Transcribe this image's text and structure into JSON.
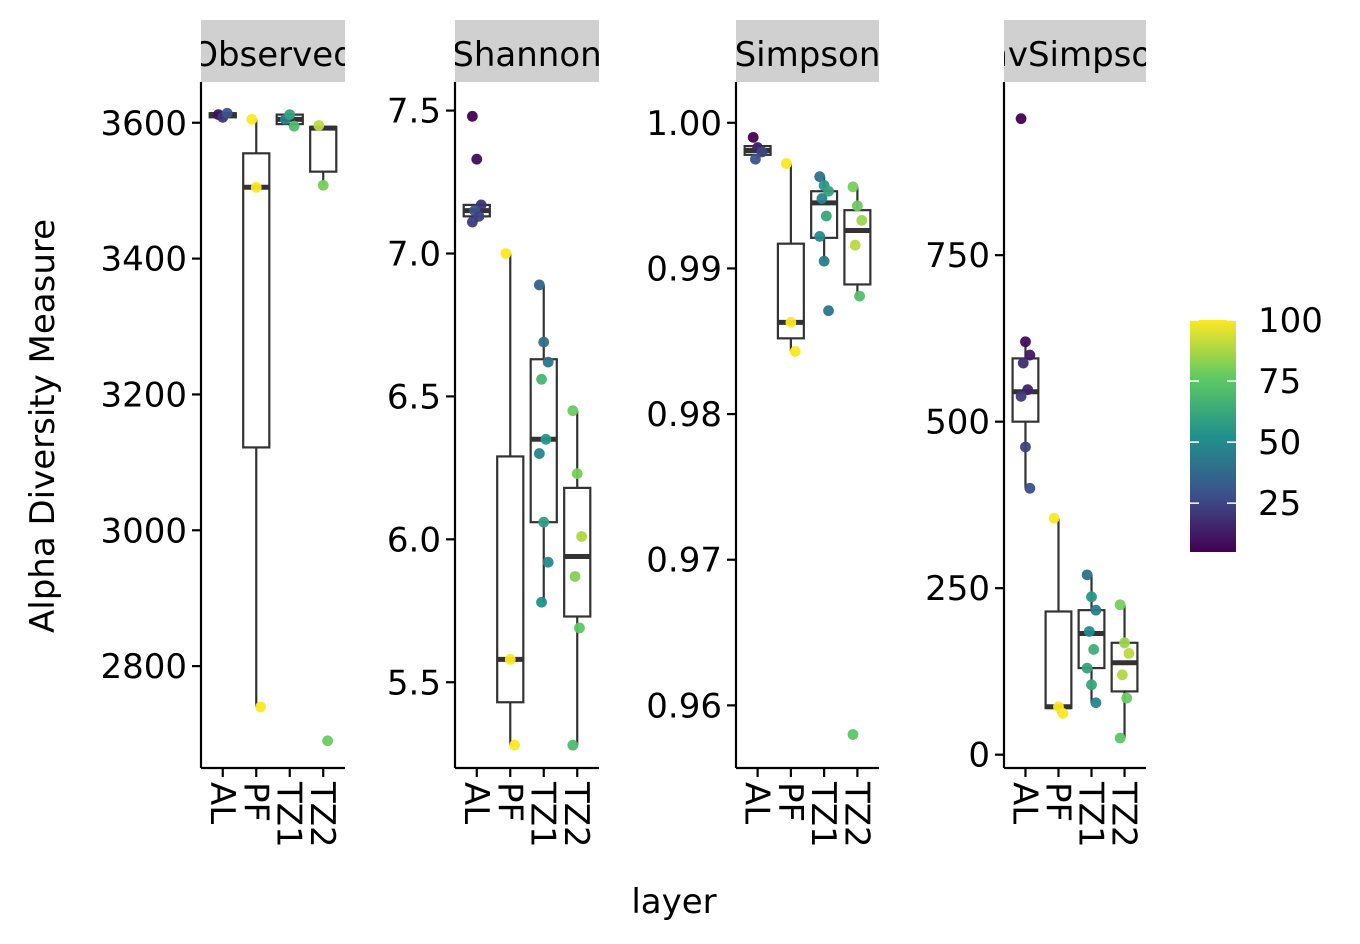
{
  "chart_data": {
    "type": "boxplot",
    "ylabel": "Alpha Diversity Measure",
    "xlabel": "layer",
    "categories": [
      "AL",
      "PF",
      "TZ1",
      "TZ2"
    ],
    "legend": {
      "placement": "right",
      "ticks": [
        25,
        50,
        75,
        100
      ],
      "range": [
        5,
        100
      ],
      "colormap": "viridis"
    },
    "panels": [
      {
        "strip": "Observed",
        "ylim": [
          2650,
          3660
        ],
        "yticks": [
          2800,
          3000,
          3200,
          3400,
          3600
        ],
        "ytick_labels": [
          "2800",
          "3000",
          "3200",
          "3400",
          "3600"
        ],
        "boxes": [
          {
            "q1": 3608,
            "median": 3612,
            "q3": 3614,
            "lo": 3608,
            "hi": 3614
          },
          {
            "q1": 3122,
            "median": 3505,
            "q3": 3555,
            "lo": 2740,
            "hi": 3605
          },
          {
            "q1": 3598,
            "median": 3605,
            "q3": 3612,
            "lo": 3595,
            "hi": 3614
          },
          {
            "q1": 3528,
            "median": 3592,
            "q3": 3594,
            "lo": 3508,
            "hi": 3596
          }
        ],
        "points": [
          [
            [
              3612,
              10
            ],
            [
              3608,
              20
            ],
            [
              3614,
              30
            ]
          ],
          [
            [
              3605,
              100
            ],
            [
              3505,
              100
            ],
            [
              2740,
              100
            ]
          ],
          [
            [
              3605,
              45
            ],
            [
              3612,
              60
            ],
            [
              3595,
              70
            ]
          ],
          [
            [
              3596,
              90
            ],
            [
              3508,
              80
            ],
            [
              2690,
              78
            ]
          ]
        ]
      },
      {
        "strip": "Shannon",
        "ylim": [
          5.2,
          7.6
        ],
        "yticks": [
          5.5,
          6.0,
          6.5,
          7.0,
          7.5
        ],
        "ytick_labels": [
          "5.5",
          "6.0",
          "6.5",
          "7.0",
          "7.5"
        ],
        "boxes": [
          {
            "q1": 7.13,
            "median": 7.15,
            "q3": 7.17,
            "lo": 7.11,
            "hi": 7.17
          },
          {
            "q1": 5.43,
            "median": 5.58,
            "q3": 6.29,
            "lo": 5.28,
            "hi": 7.0
          },
          {
            "q1": 6.06,
            "median": 6.35,
            "q3": 6.63,
            "lo": 5.78,
            "hi": 6.89
          },
          {
            "q1": 5.73,
            "median": 5.94,
            "q3": 6.18,
            "lo": 5.28,
            "hi": 6.45
          }
        ],
        "points": [
          [
            [
              7.48,
              5
            ],
            [
              7.33,
              8
            ],
            [
              7.17,
              20
            ],
            [
              7.15,
              30
            ],
            [
              7.13,
              25
            ],
            [
              7.11,
              22
            ]
          ],
          [
            [
              7.0,
              100
            ],
            [
              5.58,
              100
            ],
            [
              5.28,
              100
            ]
          ],
          [
            [
              6.89,
              35
            ],
            [
              6.69,
              40
            ],
            [
              6.62,
              42
            ],
            [
              6.56,
              68
            ],
            [
              6.35,
              55
            ],
            [
              6.3,
              48
            ],
            [
              6.06,
              58
            ],
            [
              5.92,
              50
            ],
            [
              5.78,
              52
            ]
          ],
          [
            [
              6.45,
              78
            ],
            [
              6.23,
              80
            ],
            [
              6.01,
              88
            ],
            [
              5.87,
              82
            ],
            [
              5.69,
              75
            ],
            [
              5.28,
              70
            ]
          ]
        ]
      },
      {
        "strip": "Simpson",
        "ylim": [
          0.9557,
          1.0028
        ],
        "yticks": [
          0.96,
          0.97,
          0.98,
          0.99,
          1.0
        ],
        "ytick_labels": [
          "0.96",
          "0.97",
          "0.98",
          "0.99",
          "1.00"
        ],
        "boxes": [
          {
            "q1": 0.9978,
            "median": 0.9981,
            "q3": 0.9984,
            "lo": 0.9975,
            "hi": 0.9986
          },
          {
            "q1": 0.9852,
            "median": 0.9863,
            "q3": 0.9917,
            "lo": 0.9843,
            "hi": 0.9972
          },
          {
            "q1": 0.9921,
            "median": 0.9945,
            "q3": 0.9953,
            "lo": 0.9905,
            "hi": 0.9963
          },
          {
            "q1": 0.9889,
            "median": 0.9926,
            "q3": 0.994,
            "lo": 0.9881,
            "hi": 0.9956
          }
        ],
        "points": [
          [
            [
              0.999,
              5
            ],
            [
              0.9983,
              15
            ],
            [
              0.998,
              25
            ],
            [
              0.9975,
              30
            ]
          ],
          [
            [
              0.9972,
              100
            ],
            [
              0.9863,
              100
            ],
            [
              0.9843,
              100
            ]
          ],
          [
            [
              0.9963,
              40
            ],
            [
              0.9957,
              55
            ],
            [
              0.9953,
              60
            ],
            [
              0.9948,
              48
            ],
            [
              0.9936,
              62
            ],
            [
              0.9922,
              50
            ],
            [
              0.9905,
              45
            ],
            [
              0.9871,
              42
            ]
          ],
          [
            [
              0.9956,
              80
            ],
            [
              0.9943,
              78
            ],
            [
              0.9933,
              85
            ],
            [
              0.9916,
              90
            ],
            [
              0.9881,
              72
            ],
            [
              0.958,
              75
            ]
          ]
        ]
      },
      {
        "strip": "InvSimpson",
        "ylim": [
          -20,
          1010
        ],
        "yticks": [
          0,
          250,
          500,
          750
        ],
        "ytick_labels": [
          "0",
          "250",
          "500",
          "750"
        ],
        "boxes": [
          {
            "q1": 500,
            "median": 545,
            "q3": 595,
            "lo": 400,
            "hi": 620
          },
          {
            "q1": 70,
            "median": 72,
            "q3": 215,
            "lo": 62,
            "hi": 355
          },
          {
            "q1": 130,
            "median": 182,
            "q3": 217,
            "lo": 78,
            "hi": 270
          },
          {
            "q1": 95,
            "median": 138,
            "q3": 168,
            "lo": 25,
            "hi": 225
          }
        ],
        "points": [
          [
            [
              955,
              5
            ],
            [
              620,
              8
            ],
            [
              600,
              12
            ],
            [
              588,
              18
            ],
            [
              548,
              15
            ],
            [
              538,
              22
            ],
            [
              462,
              25
            ],
            [
              400,
              28
            ]
          ],
          [
            [
              355,
              100
            ],
            [
              72,
              100
            ],
            [
              62,
              100
            ]
          ],
          [
            [
              270,
              40
            ],
            [
              237,
              55
            ],
            [
              217,
              45
            ],
            [
              185,
              50
            ],
            [
              158,
              65
            ],
            [
              130,
              60
            ],
            [
              105,
              62
            ],
            [
              78,
              48
            ]
          ],
          [
            [
              225,
              80
            ],
            [
              168,
              85
            ],
            [
              152,
              90
            ],
            [
              120,
              88
            ],
            [
              85,
              78
            ],
            [
              25,
              75
            ]
          ]
        ]
      }
    ]
  }
}
